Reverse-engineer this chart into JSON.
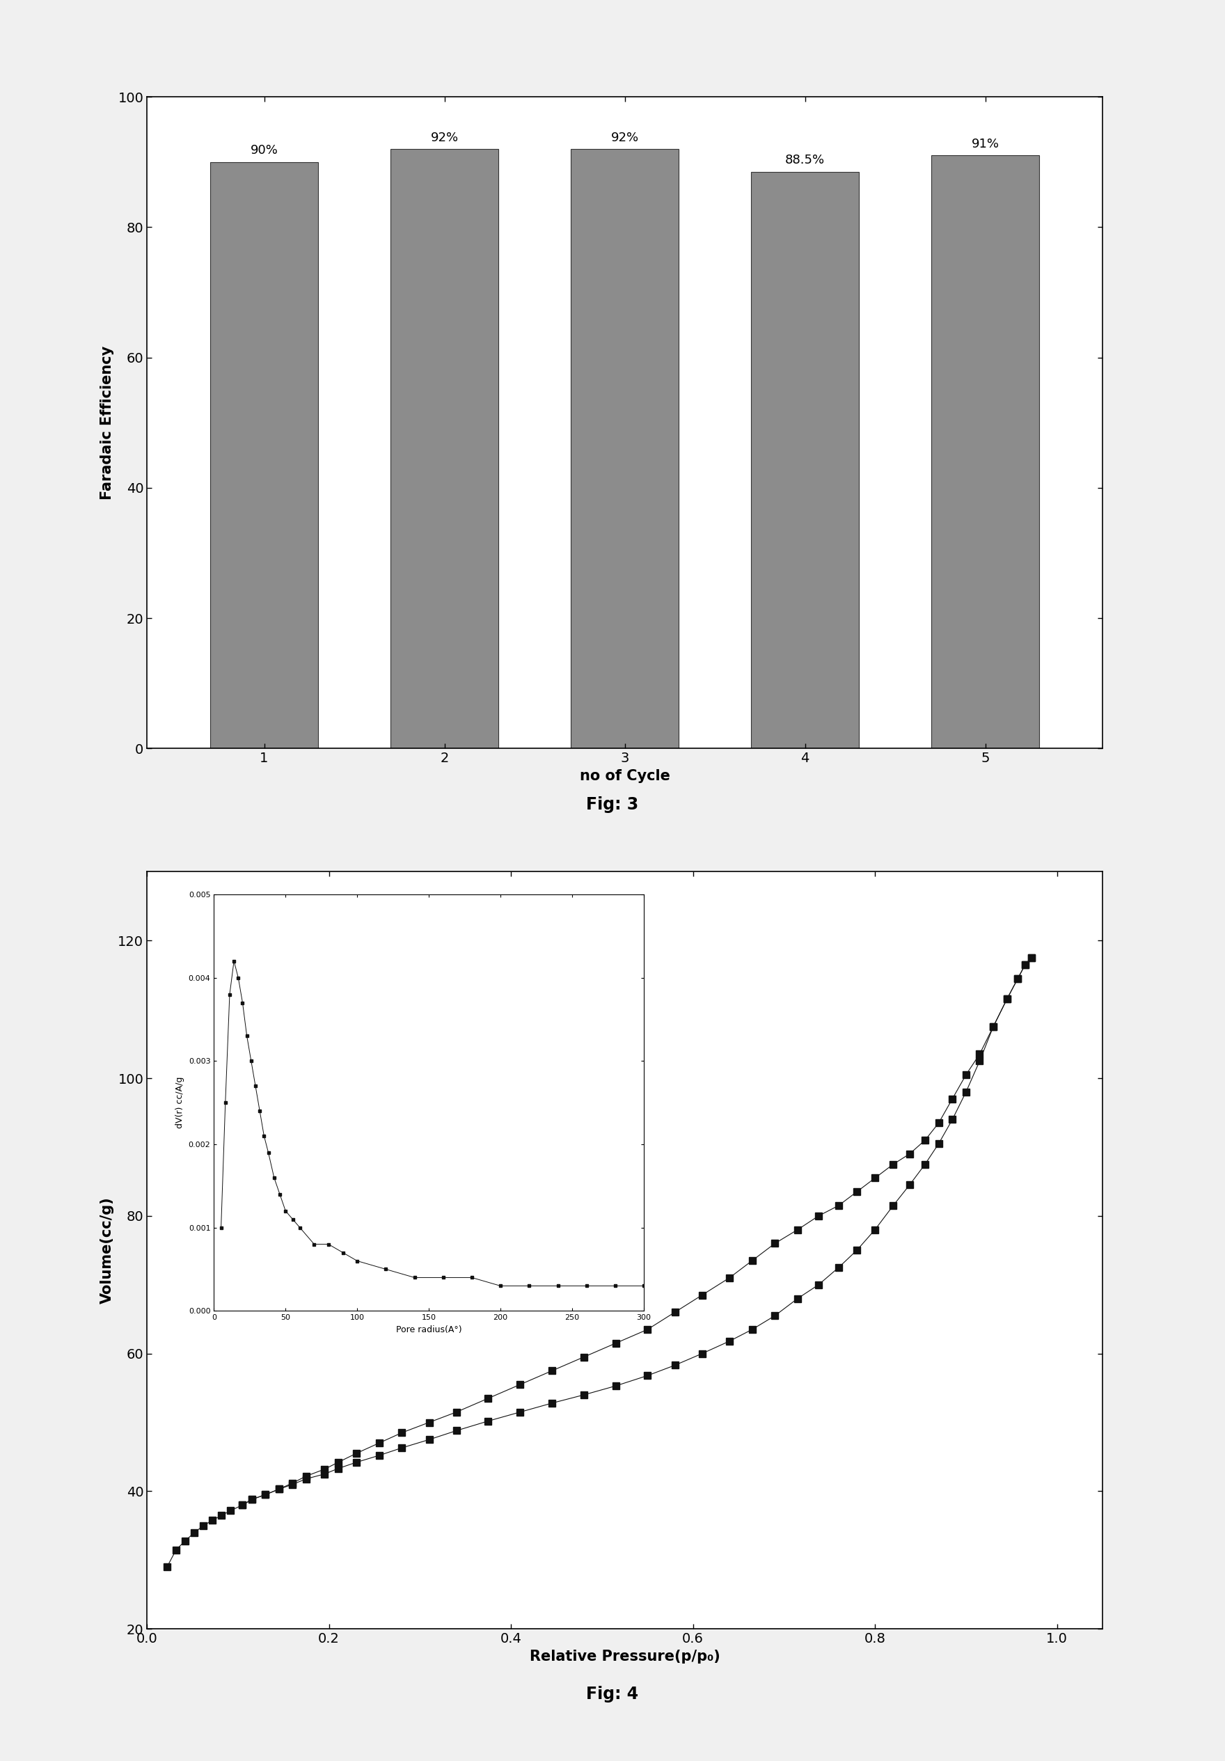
{
  "fig3": {
    "categories": [
      1,
      2,
      3,
      4,
      5
    ],
    "values": [
      90,
      92,
      92,
      88.5,
      91
    ],
    "labels": [
      "90%",
      "92%",
      "92%",
      "88.5%",
      "91%"
    ],
    "bar_color": "#8c8c8c",
    "bar_edgecolor": "#333333",
    "ylabel": "Faradaic Efficiency",
    "xlabel": "no of Cycle",
    "ylim": [
      0,
      100
    ],
    "yticks": [
      0,
      20,
      40,
      60,
      80,
      100
    ],
    "fig_label": "Fig: 3"
  },
  "fig4": {
    "adsorption_x": [
      0.022,
      0.032,
      0.042,
      0.052,
      0.062,
      0.072,
      0.082,
      0.092,
      0.105,
      0.115,
      0.13,
      0.145,
      0.16,
      0.175,
      0.195,
      0.21,
      0.23,
      0.255,
      0.28,
      0.31,
      0.34,
      0.375,
      0.41,
      0.445,
      0.48,
      0.515,
      0.55,
      0.58,
      0.61,
      0.64,
      0.665,
      0.69,
      0.715,
      0.738,
      0.76,
      0.78,
      0.8,
      0.82,
      0.838,
      0.855,
      0.87,
      0.885,
      0.9,
      0.915,
      0.93,
      0.945,
      0.957,
      0.965,
      0.972
    ],
    "adsorption_y": [
      29.0,
      31.5,
      32.8,
      34.0,
      35.0,
      35.8,
      36.5,
      37.2,
      38.0,
      38.8,
      39.5,
      40.3,
      41.0,
      41.8,
      42.5,
      43.3,
      44.2,
      45.2,
      46.3,
      47.5,
      48.8,
      50.2,
      51.5,
      52.8,
      54.0,
      55.3,
      56.8,
      58.3,
      60.0,
      61.8,
      63.5,
      65.5,
      68.0,
      70.0,
      72.5,
      75.0,
      78.0,
      81.5,
      84.5,
      87.5,
      90.5,
      94.0,
      98.0,
      102.5,
      107.5,
      111.5,
      114.5,
      116.5,
      117.5
    ],
    "desorption_x": [
      0.972,
      0.965,
      0.957,
      0.945,
      0.93,
      0.915,
      0.9,
      0.885,
      0.87,
      0.855,
      0.838,
      0.82,
      0.8,
      0.78,
      0.76,
      0.738,
      0.715,
      0.69,
      0.665,
      0.64,
      0.61,
      0.58,
      0.55,
      0.515,
      0.48,
      0.445,
      0.41,
      0.375,
      0.34,
      0.31,
      0.28,
      0.255,
      0.23,
      0.21,
      0.195,
      0.175,
      0.16,
      0.145,
      0.13,
      0.115,
      0.105
    ],
    "desorption_y": [
      117.5,
      116.5,
      114.5,
      111.5,
      107.5,
      103.5,
      100.5,
      97.0,
      93.5,
      91.0,
      89.0,
      87.5,
      85.5,
      83.5,
      81.5,
      80.0,
      78.0,
      76.0,
      73.5,
      71.0,
      68.5,
      66.0,
      63.5,
      61.5,
      59.5,
      57.5,
      55.5,
      53.5,
      51.5,
      50.0,
      48.5,
      47.0,
      45.5,
      44.2,
      43.2,
      42.2,
      41.2,
      40.3,
      39.5,
      38.8,
      38.0
    ],
    "ylabel": "Volume(cc/g)",
    "xlabel": "Relative Pressure(p/p₀)",
    "ylim": [
      20,
      130
    ],
    "yticks": [
      20,
      40,
      60,
      80,
      100,
      120
    ],
    "xlim": [
      0.0,
      1.05
    ],
    "xticks": [
      0.0,
      0.2,
      0.4,
      0.6,
      0.8,
      1.0
    ],
    "xtick_labels": [
      "0.0",
      "0.2",
      "0.4",
      "0.6",
      "0.8",
      "1.0"
    ],
    "fig_label": "Fig: 4",
    "inset": {
      "pore_x": [
        5,
        8,
        11,
        14,
        17,
        20,
        23,
        26,
        29,
        32,
        35,
        38,
        42,
        46,
        50,
        55,
        60,
        70,
        80,
        90,
        100,
        120,
        140,
        160,
        180,
        200,
        220,
        240,
        260,
        280,
        300
      ],
      "pore_y": [
        0.001,
        0.0025,
        0.0038,
        0.0042,
        0.004,
        0.0037,
        0.0033,
        0.003,
        0.0027,
        0.0024,
        0.0021,
        0.0019,
        0.0016,
        0.0014,
        0.0012,
        0.0011,
        0.001,
        0.0008,
        0.0008,
        0.0007,
        0.0006,
        0.0005,
        0.0004,
        0.0004,
        0.0004,
        0.0003,
        0.0003,
        0.0003,
        0.0003,
        0.0003,
        0.0003
      ],
      "xlabel": "Pore radius(A°)",
      "ylabel": "dV(r) cc/A/g",
      "xlim": [
        0,
        300
      ],
      "ylim": [
        0.0,
        0.005
      ],
      "xticks": [
        0,
        50,
        100,
        150,
        200,
        250,
        300
      ],
      "yticks": [
        0.0,
        0.001,
        0.002,
        0.003,
        0.004,
        0.005
      ]
    }
  },
  "background_color": "#f0f0f0",
  "marker": "s",
  "marker_size": 7,
  "line_color": "#111111"
}
